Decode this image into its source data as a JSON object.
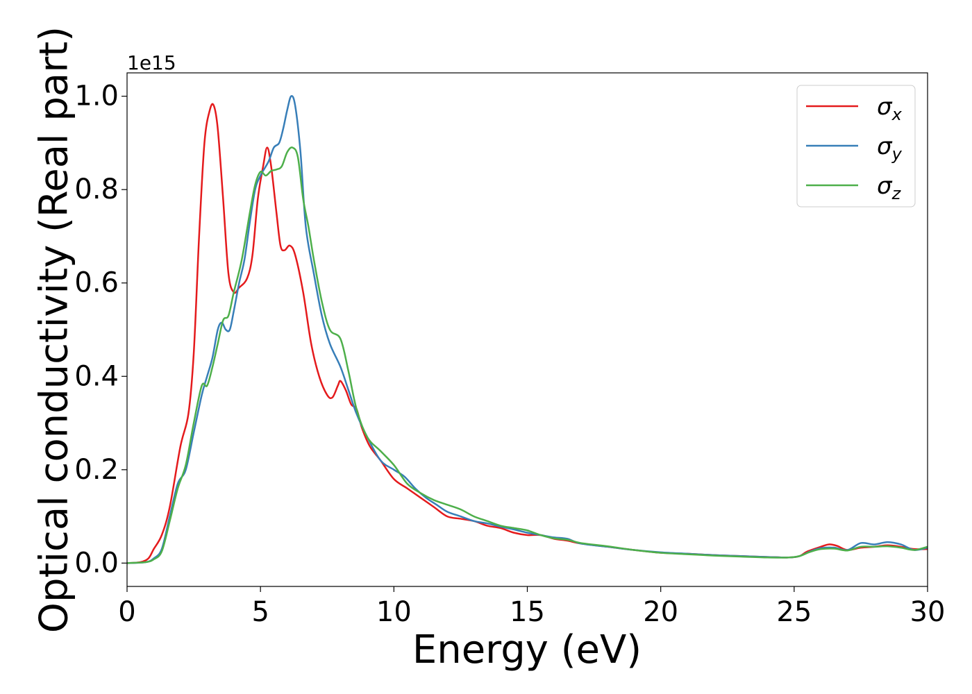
{
  "chart_data": {
    "type": "line",
    "xlabel": "Energy (eV)",
    "ylabel": "Optical conductivity (Real part)",
    "y_offset_label": "1e15",
    "xlim": [
      0,
      30
    ],
    "ylim": [
      -0.05,
      1.05
    ],
    "x_ticks": [
      "0",
      "5",
      "10",
      "15",
      "20",
      "25",
      "30"
    ],
    "y_ticks": [
      "0.0",
      "0.2",
      "0.4",
      "0.6",
      "0.8",
      "1.0"
    ],
    "grid": false,
    "legend_position": "top-right",
    "series": [
      {
        "name": "σx",
        "label_base": "σ",
        "label_sub": "x",
        "color": "#e41a1c",
        "points": [
          [
            0,
            0
          ],
          [
            0.5,
            0.002
          ],
          [
            0.8,
            0.01
          ],
          [
            1.0,
            0.03
          ],
          [
            1.3,
            0.06
          ],
          [
            1.6,
            0.12
          ],
          [
            2.0,
            0.25
          ],
          [
            2.3,
            0.32
          ],
          [
            2.5,
            0.45
          ],
          [
            2.7,
            0.7
          ],
          [
            2.9,
            0.9
          ],
          [
            3.1,
            0.97
          ],
          [
            3.25,
            0.98
          ],
          [
            3.4,
            0.93
          ],
          [
            3.6,
            0.78
          ],
          [
            3.8,
            0.62
          ],
          [
            4.0,
            0.58
          ],
          [
            4.2,
            0.59
          ],
          [
            4.5,
            0.61
          ],
          [
            4.7,
            0.66
          ],
          [
            4.9,
            0.78
          ],
          [
            5.1,
            0.85
          ],
          [
            5.25,
            0.89
          ],
          [
            5.4,
            0.85
          ],
          [
            5.6,
            0.75
          ],
          [
            5.75,
            0.68
          ],
          [
            5.9,
            0.67
          ],
          [
            6.1,
            0.68
          ],
          [
            6.3,
            0.66
          ],
          [
            6.6,
            0.58
          ],
          [
            6.9,
            0.47
          ],
          [
            7.2,
            0.4
          ],
          [
            7.5,
            0.36
          ],
          [
            7.7,
            0.355
          ],
          [
            7.9,
            0.38
          ],
          [
            8.0,
            0.39
          ],
          [
            8.2,
            0.37
          ],
          [
            8.4,
            0.34
          ],
          [
            8.6,
            0.33
          ],
          [
            8.8,
            0.29
          ],
          [
            9.1,
            0.25
          ],
          [
            9.5,
            0.22
          ],
          [
            10,
            0.18
          ],
          [
            10.5,
            0.16
          ],
          [
            11,
            0.14
          ],
          [
            11.5,
            0.12
          ],
          [
            12,
            0.1
          ],
          [
            12.5,
            0.095
          ],
          [
            13,
            0.09
          ],
          [
            13.5,
            0.08
          ],
          [
            14,
            0.075
          ],
          [
            14.5,
            0.065
          ],
          [
            15,
            0.06
          ],
          [
            15.5,
            0.06
          ],
          [
            16,
            0.052
          ],
          [
            16.5,
            0.048
          ],
          [
            17,
            0.042
          ],
          [
            18,
            0.035
          ],
          [
            19,
            0.028
          ],
          [
            20,
            0.022
          ],
          [
            21,
            0.02
          ],
          [
            22,
            0.017
          ],
          [
            23,
            0.015
          ],
          [
            24,
            0.013
          ],
          [
            24.8,
            0.012
          ],
          [
            25.2,
            0.015
          ],
          [
            25.5,
            0.025
          ],
          [
            26,
            0.035
          ],
          [
            26.3,
            0.04
          ],
          [
            26.6,
            0.037
          ],
          [
            27,
            0.028
          ],
          [
            27.5,
            0.033
          ],
          [
            28,
            0.035
          ],
          [
            28.5,
            0.038
          ],
          [
            29,
            0.035
          ],
          [
            29.5,
            0.03
          ],
          [
            30,
            0.03
          ]
        ]
      },
      {
        "name": "σy",
        "label_base": "σ",
        "label_sub": "y",
        "color": "#377eb8",
        "points": [
          [
            0,
            0
          ],
          [
            0.7,
            0.002
          ],
          [
            1.0,
            0.01
          ],
          [
            1.3,
            0.03
          ],
          [
            1.6,
            0.1
          ],
          [
            1.9,
            0.17
          ],
          [
            2.2,
            0.2
          ],
          [
            2.5,
            0.28
          ],
          [
            2.8,
            0.36
          ],
          [
            3.0,
            0.4
          ],
          [
            3.2,
            0.44
          ],
          [
            3.4,
            0.5
          ],
          [
            3.55,
            0.515
          ],
          [
            3.7,
            0.5
          ],
          [
            3.85,
            0.5
          ],
          [
            4.0,
            0.54
          ],
          [
            4.2,
            0.6
          ],
          [
            4.4,
            0.65
          ],
          [
            4.6,
            0.73
          ],
          [
            4.8,
            0.8
          ],
          [
            5.0,
            0.83
          ],
          [
            5.3,
            0.86
          ],
          [
            5.5,
            0.89
          ],
          [
            5.7,
            0.9
          ],
          [
            5.85,
            0.93
          ],
          [
            6.0,
            0.97
          ],
          [
            6.15,
            1.0
          ],
          [
            6.3,
            0.98
          ],
          [
            6.5,
            0.88
          ],
          [
            6.7,
            0.72
          ],
          [
            7.0,
            0.62
          ],
          [
            7.3,
            0.53
          ],
          [
            7.6,
            0.47
          ],
          [
            8.0,
            0.42
          ],
          [
            8.3,
            0.37
          ],
          [
            8.6,
            0.32
          ],
          [
            9.0,
            0.27
          ],
          [
            9.5,
            0.22
          ],
          [
            10,
            0.2
          ],
          [
            10.4,
            0.185
          ],
          [
            10.8,
            0.16
          ],
          [
            11.2,
            0.14
          ],
          [
            11.6,
            0.125
          ],
          [
            12,
            0.11
          ],
          [
            12.5,
            0.1
          ],
          [
            13,
            0.09
          ],
          [
            13.5,
            0.085
          ],
          [
            14,
            0.078
          ],
          [
            14.5,
            0.072
          ],
          [
            15,
            0.065
          ],
          [
            15.5,
            0.06
          ],
          [
            16,
            0.055
          ],
          [
            16.5,
            0.052
          ],
          [
            17,
            0.042
          ],
          [
            18,
            0.035
          ],
          [
            19,
            0.028
          ],
          [
            20,
            0.023
          ],
          [
            21,
            0.02
          ],
          [
            22,
            0.017
          ],
          [
            23,
            0.015
          ],
          [
            24,
            0.013
          ],
          [
            24.8,
            0.012
          ],
          [
            25.2,
            0.015
          ],
          [
            25.6,
            0.025
          ],
          [
            26,
            0.032
          ],
          [
            26.5,
            0.033
          ],
          [
            27,
            0.028
          ],
          [
            27.5,
            0.043
          ],
          [
            28,
            0.04
          ],
          [
            28.5,
            0.045
          ],
          [
            29,
            0.04
          ],
          [
            29.5,
            0.028
          ],
          [
            30,
            0.033
          ]
        ]
      },
      {
        "name": "σz",
        "label_base": "σ",
        "label_sub": "z",
        "color": "#4daf4a",
        "points": [
          [
            0,
            0
          ],
          [
            0.7,
            0.002
          ],
          [
            1.0,
            0.008
          ],
          [
            1.3,
            0.025
          ],
          [
            1.6,
            0.09
          ],
          [
            1.9,
            0.16
          ],
          [
            2.2,
            0.21
          ],
          [
            2.5,
            0.3
          ],
          [
            2.8,
            0.38
          ],
          [
            3.0,
            0.38
          ],
          [
            3.2,
            0.42
          ],
          [
            3.4,
            0.47
          ],
          [
            3.6,
            0.52
          ],
          [
            3.8,
            0.53
          ],
          [
            4.0,
            0.58
          ],
          [
            4.3,
            0.65
          ],
          [
            4.6,
            0.75
          ],
          [
            4.8,
            0.81
          ],
          [
            5.0,
            0.838
          ],
          [
            5.2,
            0.83
          ],
          [
            5.4,
            0.84
          ],
          [
            5.6,
            0.843
          ],
          [
            5.8,
            0.85
          ],
          [
            6.0,
            0.88
          ],
          [
            6.2,
            0.89
          ],
          [
            6.4,
            0.87
          ],
          [
            6.6,
            0.78
          ],
          [
            6.8,
            0.72
          ],
          [
            7.0,
            0.65
          ],
          [
            7.3,
            0.56
          ],
          [
            7.6,
            0.5
          ],
          [
            8.0,
            0.48
          ],
          [
            8.3,
            0.41
          ],
          [
            8.6,
            0.33
          ],
          [
            9.0,
            0.27
          ],
          [
            9.5,
            0.24
          ],
          [
            10,
            0.21
          ],
          [
            10.5,
            0.17
          ],
          [
            11,
            0.15
          ],
          [
            11.5,
            0.135
          ],
          [
            12,
            0.125
          ],
          [
            12.5,
            0.115
          ],
          [
            13,
            0.1
          ],
          [
            13.5,
            0.09
          ],
          [
            14,
            0.08
          ],
          [
            14.5,
            0.075
          ],
          [
            15,
            0.07
          ],
          [
            15.5,
            0.06
          ],
          [
            16,
            0.053
          ],
          [
            16.5,
            0.05
          ],
          [
            17,
            0.043
          ],
          [
            18,
            0.036
          ],
          [
            19,
            0.028
          ],
          [
            20,
            0.022
          ],
          [
            21,
            0.019
          ],
          [
            22,
            0.016
          ],
          [
            23,
            0.014
          ],
          [
            24,
            0.012
          ],
          [
            24.8,
            0.012
          ],
          [
            25.2,
            0.015
          ],
          [
            25.6,
            0.024
          ],
          [
            26,
            0.03
          ],
          [
            26.5,
            0.031
          ],
          [
            27,
            0.027
          ],
          [
            27.5,
            0.035
          ],
          [
            28,
            0.035
          ],
          [
            28.5,
            0.036
          ],
          [
            29,
            0.033
          ],
          [
            29.5,
            0.028
          ],
          [
            30,
            0.035
          ]
        ]
      }
    ]
  }
}
